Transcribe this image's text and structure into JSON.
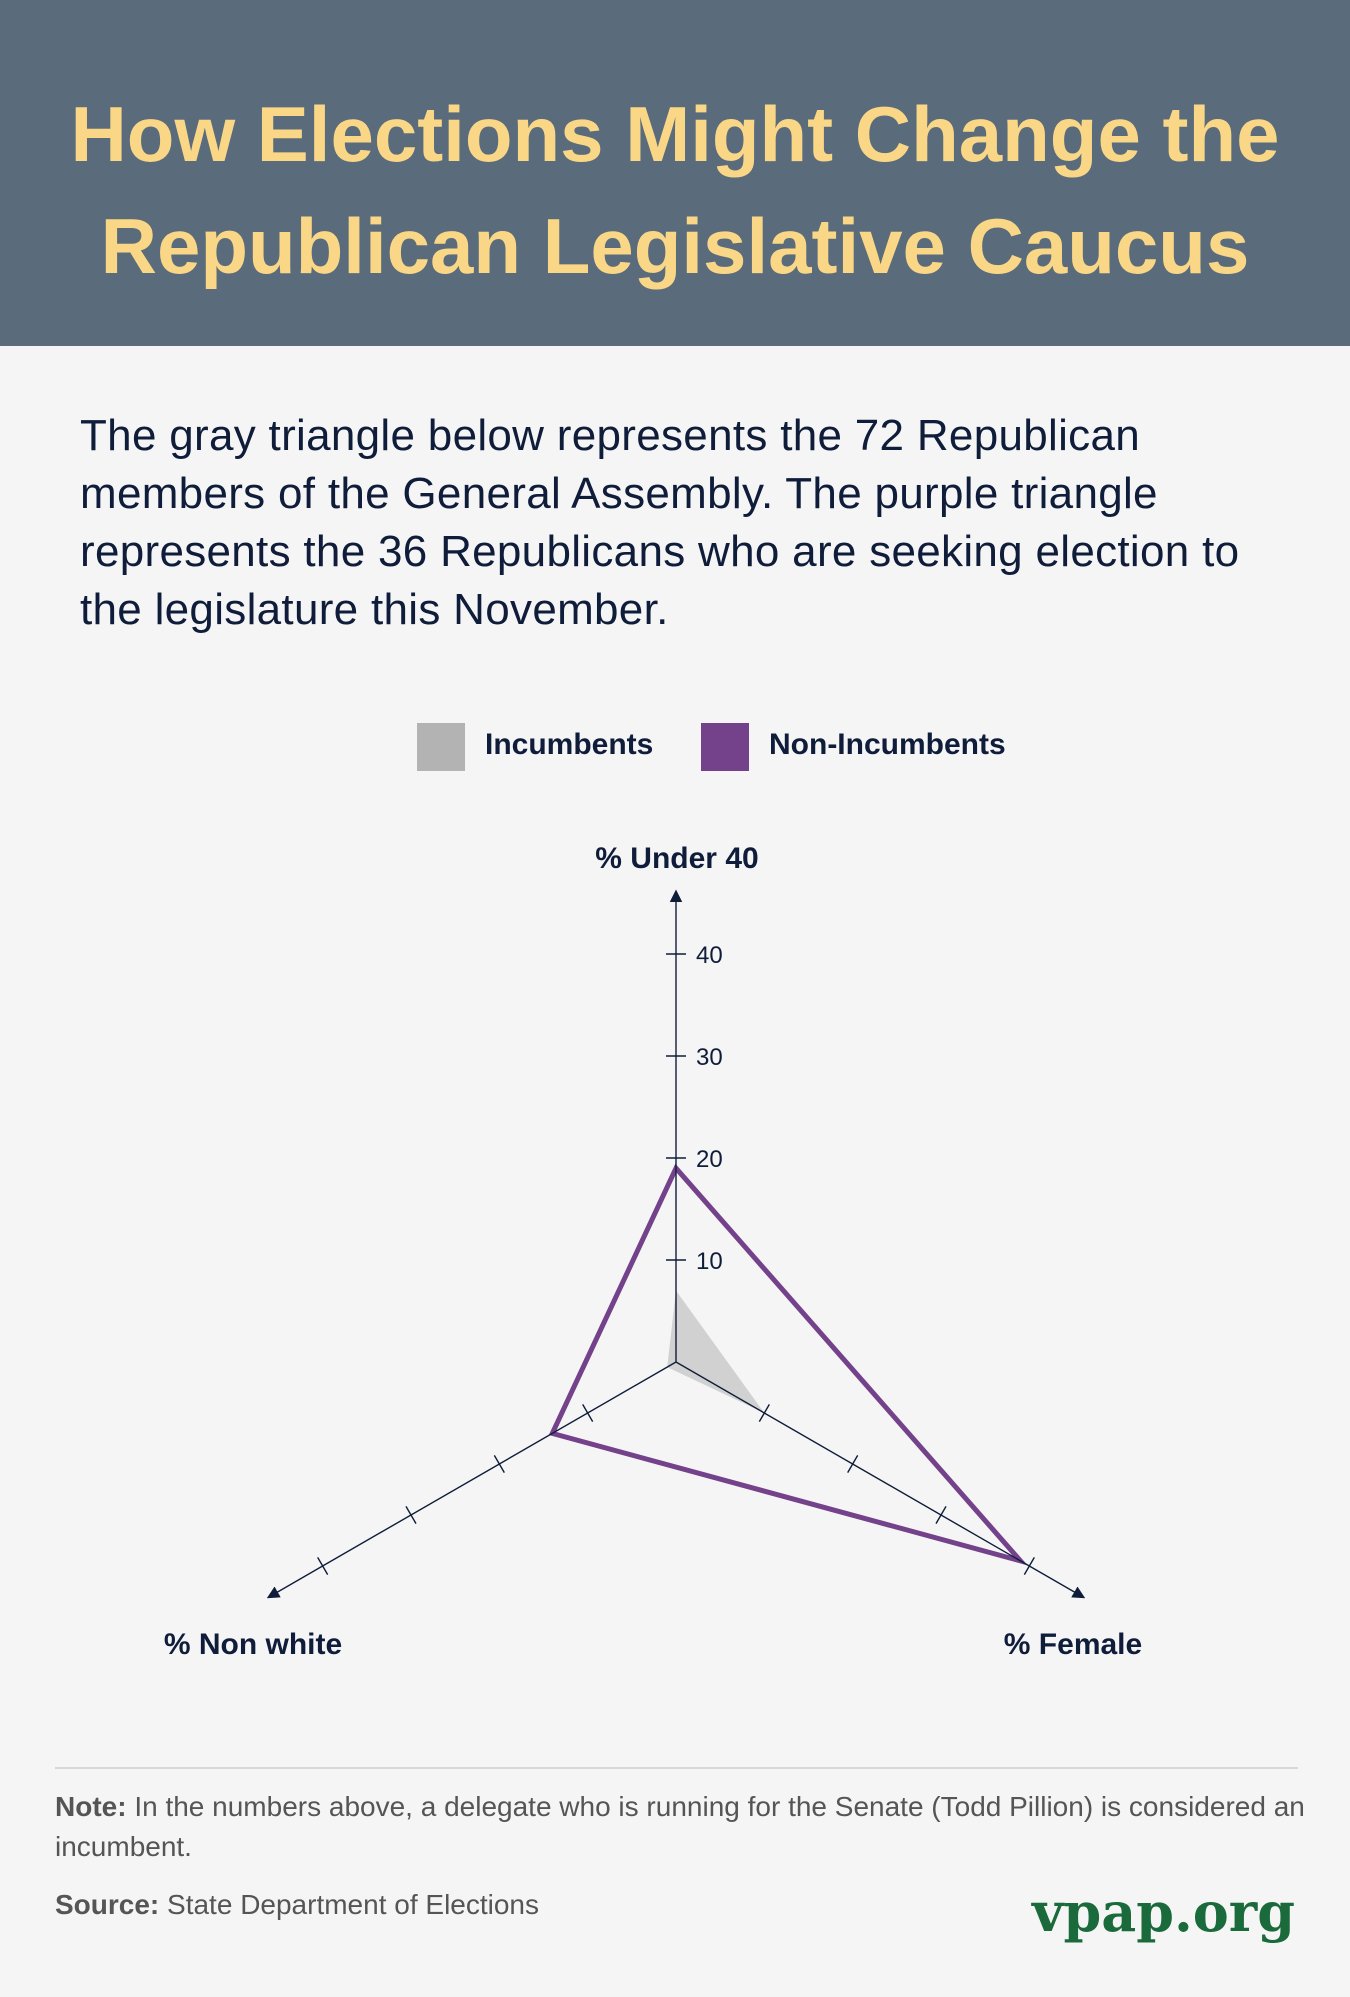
{
  "header": {
    "title_line1": "How Elections Might Change the",
    "title_line2": "Republican Legislative Caucus"
  },
  "intro": "The gray triangle below represents the 72 Republican members of the General Assembly. The purple triangle represents the 36 Republicans who are seeking election to the legislature this November.",
  "colors": {
    "header_bg": "#5a6c7b",
    "title": "#fad787",
    "incumbents": "#b3b3b3",
    "non_incumbents": "#73428a",
    "axis": "#0f1d3a",
    "brand": "#1b6a3b"
  },
  "chart_data": {
    "type": "radar",
    "axes": [
      "% Under 40",
      "% Female",
      "% Non white"
    ],
    "axis_range": [
      0,
      45
    ],
    "tick_values": [
      10,
      20,
      30,
      40
    ],
    "tick_labels": [
      "10",
      "20",
      "30",
      "40"
    ],
    "series": [
      {
        "name": "Incumbents",
        "values": [
          7,
          10,
          1
        ]
      },
      {
        "name": "Non-Incumbents",
        "values": [
          19,
          39,
          14
        ]
      }
    ],
    "legend": {
      "position": "top",
      "entries": [
        "Incumbents",
        "Non-Incumbents"
      ]
    }
  },
  "footer": {
    "note_label": "Note:",
    "note_text": "In the numbers above, a delegate who is running for the Senate (Todd Pillion) is considered an incumbent.",
    "source_label": "Source:",
    "source_text": "State Department of Elections",
    "brand": "vpap.org"
  }
}
